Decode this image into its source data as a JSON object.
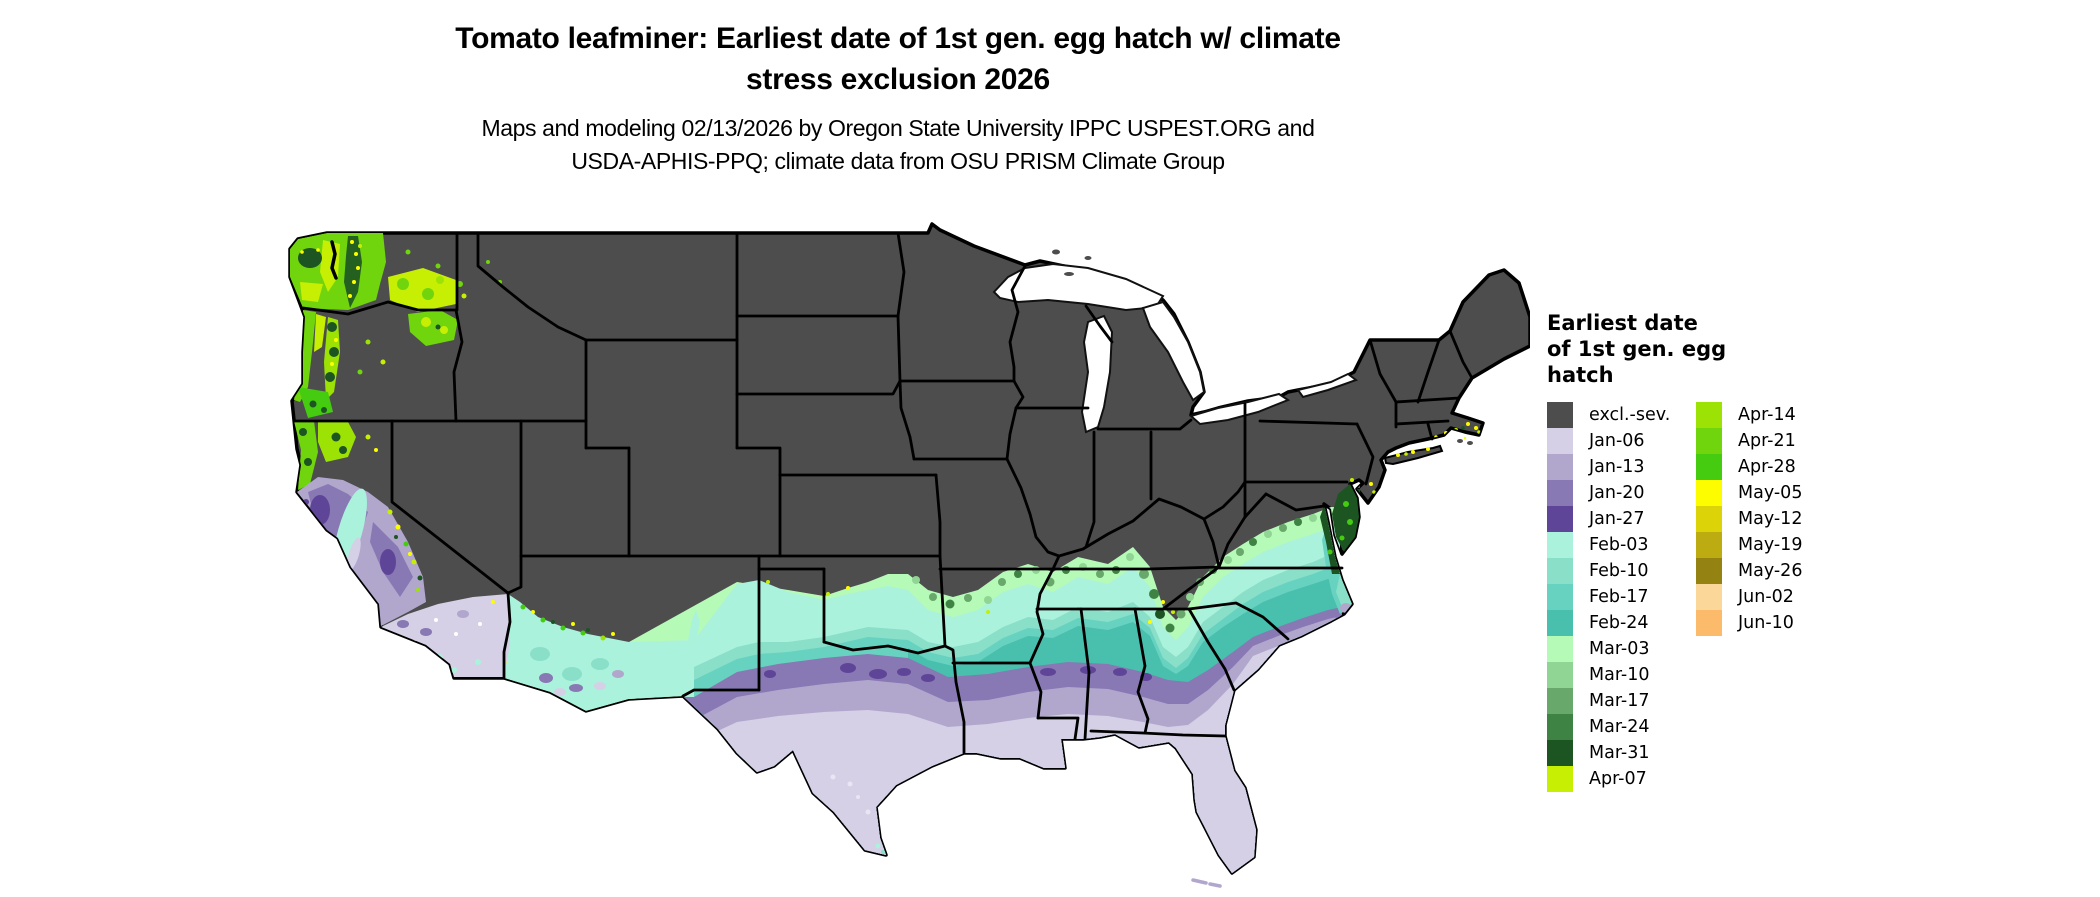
{
  "title": {
    "line1": "Tomato leafminer: Earliest date of 1st gen. egg hatch w/ climate",
    "line2": "stress exclusion 2026"
  },
  "subtitle": {
    "line1": "Maps and modeling 02/13/2026 by Oregon State University IPPC USPEST.ORG and",
    "line2": "USDA-APHIS-PPQ; climate data from OSU PRISM Climate Group"
  },
  "legend": {
    "title_lines": [
      "Earliest date",
      "of 1st gen. egg",
      "hatch"
    ],
    "columns": [
      {
        "entries": [
          {
            "label": "excl.-sev.",
            "color": "#4d4d4d"
          },
          {
            "label": "Jan-06",
            "color": "#d5d0e6"
          },
          {
            "label": "Jan-13",
            "color": "#b1a7cd"
          },
          {
            "label": "Jan-20",
            "color": "#8878b4"
          },
          {
            "label": "Jan-27",
            "color": "#5f4598"
          },
          {
            "label": "Feb-03",
            "color": "#aaf2dc"
          },
          {
            "label": "Feb-10",
            "color": "#8adfc8"
          },
          {
            "label": "Feb-17",
            "color": "#67d2c0"
          },
          {
            "label": "Feb-24",
            "color": "#49bfae"
          },
          {
            "label": "Mar-03",
            "color": "#b6fab8"
          },
          {
            "label": "Mar-10",
            "color": "#90d593"
          },
          {
            "label": "Mar-17",
            "color": "#68a86b"
          },
          {
            "label": "Mar-24",
            "color": "#3f8344"
          },
          {
            "label": "Mar-31",
            "color": "#1c5422"
          },
          {
            "label": "Apr-07",
            "color": "#c6ef04"
          }
        ]
      },
      {
        "entries": [
          {
            "label": "Apr-14",
            "color": "#9ce305"
          },
          {
            "label": "Apr-21",
            "color": "#70d50c"
          },
          {
            "label": "Apr-28",
            "color": "#45cb10"
          },
          {
            "label": "May-05",
            "color": "#fdfd00"
          },
          {
            "label": "May-12",
            "color": "#dcd309"
          },
          {
            "label": "May-19",
            "color": "#bcab11"
          },
          {
            "label": "May-26",
            "color": "#948312"
          },
          {
            "label": "Jun-02",
            "color": "#fbd79a"
          },
          {
            "label": "Jun-10",
            "color": "#fbbb6a"
          }
        ]
      }
    ]
  },
  "map": {
    "land_excluded_color": "#4d4d4d",
    "state_border_color": "#000000",
    "water_color": "#ffffff"
  }
}
